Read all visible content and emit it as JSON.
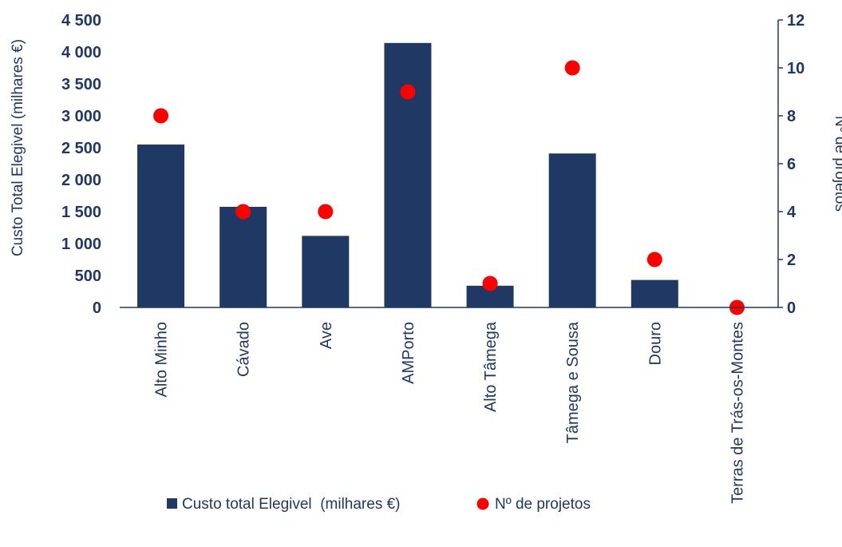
{
  "chart_data": {
    "type": "bar",
    "categories": [
      "Alto Minho",
      "Cávado",
      "Ave",
      "AMPorto",
      "Alto Tâmega",
      "Tâmega e Sousa",
      "Douro",
      "Terras de Trás-os-Montes"
    ],
    "series": [
      {
        "name": "Custo total Elegivel  (milhares €)",
        "type": "bar",
        "axis": "left",
        "color": "#1f3864",
        "values": [
          2550,
          1575,
          1120,
          4140,
          340,
          2410,
          430,
          0
        ]
      },
      {
        "name": "Nº de projetos",
        "type": "scatter",
        "axis": "right",
        "color": "#ff0000",
        "values": [
          8,
          4,
          4,
          9,
          1,
          10,
          2,
          0
        ]
      }
    ],
    "ylabel": "Custo Total Elegivel (milhares €)",
    "y2label": "Nº de projetos",
    "ylim": [
      0,
      4500
    ],
    "y2lim": [
      0,
      12
    ],
    "yticks": [
      "0",
      "500",
      "1 000",
      "1 500",
      "2 000",
      "2 500",
      "3 000",
      "3 500",
      "4 000",
      "4 500"
    ],
    "y2ticks": [
      "0",
      "2",
      "4",
      "6",
      "8",
      "10",
      "12"
    ],
    "grid": false,
    "legend": "bottom"
  }
}
